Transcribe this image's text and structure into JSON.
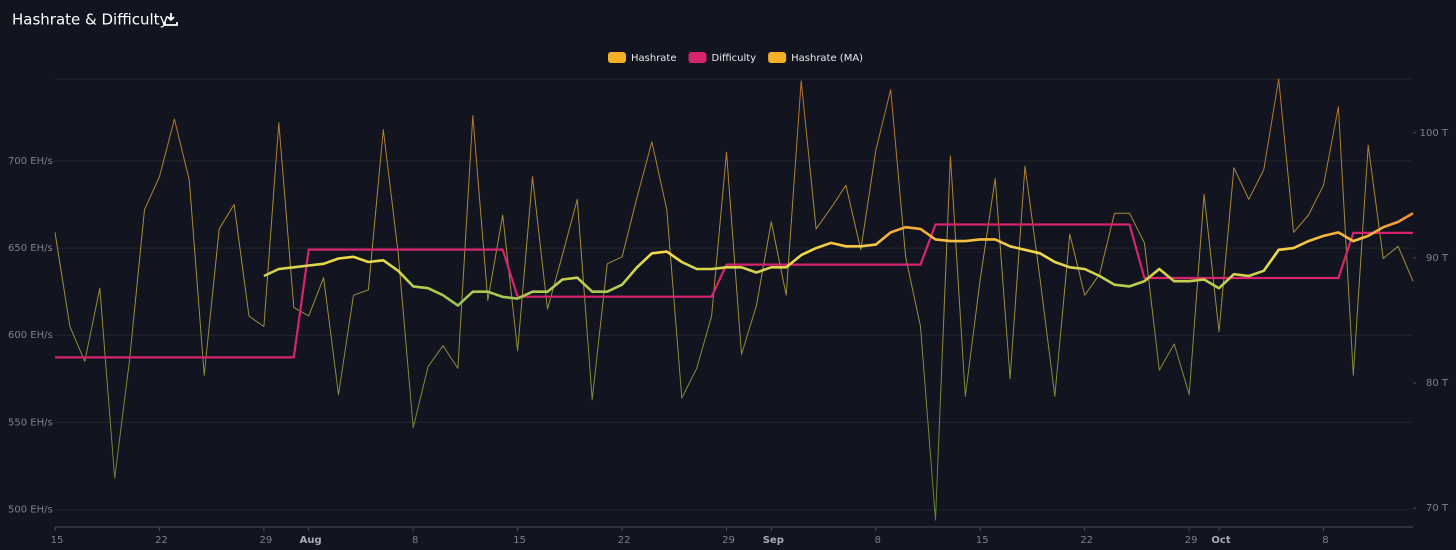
{
  "chart_data": {
    "type": "line",
    "title": "Hashrate & Difficulty",
    "categories": [
      "Jul 15",
      "Jul 16",
      "Jul 17",
      "Jul 18",
      "Jul 19",
      "Jul 20",
      "Jul 21",
      "Jul 22",
      "Jul 23",
      "Jul 24",
      "Jul 25",
      "Jul 26",
      "Jul 27",
      "Jul 28",
      "Jul 29",
      "Jul 30",
      "Jul 31",
      "Aug 1",
      "Aug 2",
      "Aug 3",
      "Aug 4",
      "Aug 5",
      "Aug 6",
      "Aug 7",
      "Aug 8",
      "Aug 9",
      "Aug 10",
      "Aug 11",
      "Aug 12",
      "Aug 13",
      "Aug 14",
      "Aug 15",
      "Aug 16",
      "Aug 17",
      "Aug 18",
      "Aug 19",
      "Aug 20",
      "Aug 21",
      "Aug 22",
      "Aug 23",
      "Aug 24",
      "Aug 25",
      "Aug 26",
      "Aug 27",
      "Aug 28",
      "Aug 29",
      "Aug 30",
      "Aug 31",
      "Sep 1",
      "Sep 2",
      "Sep 3",
      "Sep 4",
      "Sep 5",
      "Sep 6",
      "Sep 7",
      "Sep 8",
      "Sep 9",
      "Sep 10",
      "Sep 11",
      "Sep 12",
      "Sep 13",
      "Sep 14",
      "Sep 15",
      "Sep 16",
      "Sep 17",
      "Sep 18",
      "Sep 19",
      "Sep 20",
      "Sep 21",
      "Sep 22",
      "Sep 23",
      "Sep 24",
      "Sep 25",
      "Sep 26",
      "Sep 27",
      "Sep 28",
      "Sep 29",
      "Sep 30",
      "Oct 1",
      "Oct 2",
      "Oct 3",
      "Oct 4",
      "Oct 5",
      "Oct 6",
      "Oct 7",
      "Oct 8",
      "Oct 9",
      "Oct 10",
      "Oct 11",
      "Oct 12",
      "Oct 13",
      "Oct 14"
    ],
    "xticks": [
      {
        "value": "Jul 15",
        "label": "15"
      },
      {
        "value": "Jul 22",
        "label": "22"
      },
      {
        "value": "Jul 29",
        "label": "29"
      },
      {
        "value": "Aug 1",
        "label": "Aug"
      },
      {
        "value": "Aug 8",
        "label": "8"
      },
      {
        "value": "Aug 15",
        "label": "15"
      },
      {
        "value": "Aug 22",
        "label": "22"
      },
      {
        "value": "Aug 29",
        "label": "29"
      },
      {
        "value": "Sep 1",
        "label": "Sep"
      },
      {
        "value": "Sep 8",
        "label": "8"
      },
      {
        "value": "Sep 15",
        "label": "15"
      },
      {
        "value": "Sep 22",
        "label": "22"
      },
      {
        "value": "Sep 29",
        "label": "29"
      },
      {
        "value": "Oct 1",
        "label": "Oct"
      },
      {
        "value": "Oct 8",
        "label": "8"
      }
    ],
    "series": [
      {
        "name": "Hashrate",
        "color": "#f5b027",
        "values": [
          659,
          605,
          585,
          627,
          518,
          586,
          672,
          691,
          724,
          689,
          577,
          661,
          675,
          611,
          605,
          722,
          616,
          611,
          633,
          566,
          623,
          626,
          718,
          647,
          547,
          582,
          594,
          581,
          726,
          620,
          669,
          591,
          691,
          615,
          646,
          678,
          563,
          641,
          645,
          679,
          711,
          672,
          564,
          581,
          611,
          705,
          589,
          617,
          665,
          623,
          746,
          661,
          673,
          686,
          649,
          706,
          741,
          645,
          605,
          494,
          703,
          565,
          632,
          690,
          575,
          697,
          633,
          565,
          658,
          623,
          635,
          670,
          670,
          653,
          580,
          595,
          566,
          681,
          602,
          696,
          678,
          695,
          747,
          659,
          669,
          686,
          731,
          577,
          709,
          644,
          651,
          631
        ]
      },
      {
        "name": "Difficulty",
        "color": "#d6246e",
        "axis": "y2",
        "values": [
          82.05,
          82.05,
          82.05,
          82.05,
          82.05,
          82.05,
          82.05,
          82.05,
          82.05,
          82.05,
          82.05,
          82.05,
          82.05,
          82.05,
          82.05,
          82.05,
          82.05,
          90.67,
          90.67,
          90.67,
          90.67,
          90.67,
          90.67,
          90.67,
          90.67,
          90.67,
          90.67,
          90.67,
          90.67,
          90.67,
          90.67,
          86.9,
          86.9,
          86.9,
          86.9,
          86.9,
          86.9,
          86.9,
          86.9,
          86.9,
          86.9,
          86.9,
          86.9,
          86.9,
          86.9,
          89.47,
          89.47,
          89.47,
          89.47,
          89.47,
          89.47,
          89.47,
          89.47,
          89.47,
          89.47,
          89.47,
          89.47,
          89.47,
          89.47,
          92.67,
          92.67,
          92.67,
          92.67,
          92.67,
          92.67,
          92.67,
          92.67,
          92.67,
          92.67,
          92.67,
          92.67,
          92.67,
          92.67,
          88.4,
          88.4,
          88.4,
          88.4,
          88.4,
          88.4,
          88.4,
          88.4,
          88.4,
          88.4,
          88.4,
          88.4,
          88.4,
          88.4,
          92.0,
          92.0,
          92.0,
          92.0,
          92.0
        ]
      },
      {
        "name": "Hashrate (MA)",
        "color": "#f5b027",
        "values": [
          null,
          null,
          null,
          null,
          null,
          null,
          null,
          null,
          null,
          null,
          null,
          null,
          null,
          null,
          634,
          638,
          639,
          640,
          641,
          644,
          645,
          642,
          643,
          637,
          628,
          627,
          623,
          617,
          625,
          625,
          622,
          621,
          625,
          625,
          632,
          633,
          625,
          625,
          629,
          639,
          647,
          648,
          642,
          638,
          638,
          639,
          639,
          636,
          639,
          639,
          646,
          650,
          653,
          651,
          651,
          652,
          659,
          662,
          661,
          655,
          654,
          654,
          655,
          655,
          651,
          649,
          647,
          642,
          639,
          638,
          634,
          629,
          628,
          631,
          638,
          631,
          631,
          632,
          627,
          635,
          634,
          637,
          649,
          650,
          654,
          657,
          659,
          654,
          657,
          662,
          665,
          670
        ]
      }
    ],
    "ylim": [
      490,
      747
    ],
    "yticks": [
      {
        "value": 500,
        "label": "500 EH/s"
      },
      {
        "value": 550,
        "label": "550 EH/s"
      },
      {
        "value": 600,
        "label": "600 EH/s"
      },
      {
        "value": 650,
        "label": "650 EH/s"
      },
      {
        "value": 700,
        "label": "700 EH/s"
      }
    ],
    "y2lim": [
      68.5,
      104.3
    ],
    "y2ticks": [
      {
        "value": 70,
        "label": "70 T"
      },
      {
        "value": 80,
        "label": "80 T"
      },
      {
        "value": 90,
        "label": "90 T"
      },
      {
        "value": 100,
        "label": "100 T"
      }
    ],
    "grid": true,
    "legend": "top"
  }
}
